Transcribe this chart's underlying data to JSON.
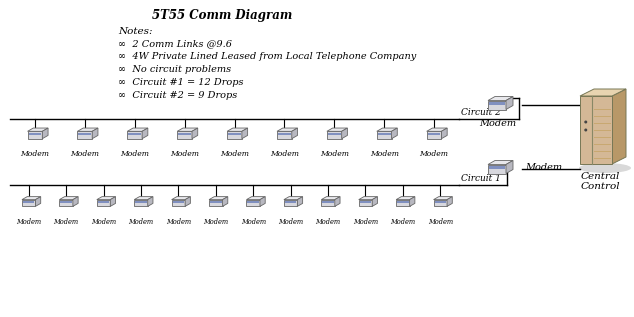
{
  "title": "5T55 Comm Diagram",
  "notes_header": "Notes:",
  "notes": [
    "∞  2 Comm Links @9.6",
    "∞  4W Private Lined Leased from Local Telephone Company",
    "∞  No circuit problems",
    "∞  Circuit #1 = 12 Drops",
    "∞  Circuit #2 = 9 Drops"
  ],
  "circuit2_drops": 9,
  "circuit1_drops": 12,
  "circuit2_label": "Circuit 2",
  "circuit1_label": "Circuit 1",
  "modem_label": "Modem",
  "central_label": "Central\nControl",
  "bg_color": "#ffffff",
  "line_color": "#000000",
  "text_color": "#000000",
  "modem_top_color": "#e8e8ec",
  "modem_front_color": "#d8d8de",
  "modem_side_color": "#b8b8c0",
  "modem_stripe_color": "#8090c0",
  "server_front_color": "#d4b896",
  "server_side_color": "#b89868",
  "server_top_color": "#e8d4b0",
  "server_vent_color": "#c8a870",
  "shadow_color": "#c0c0c0"
}
